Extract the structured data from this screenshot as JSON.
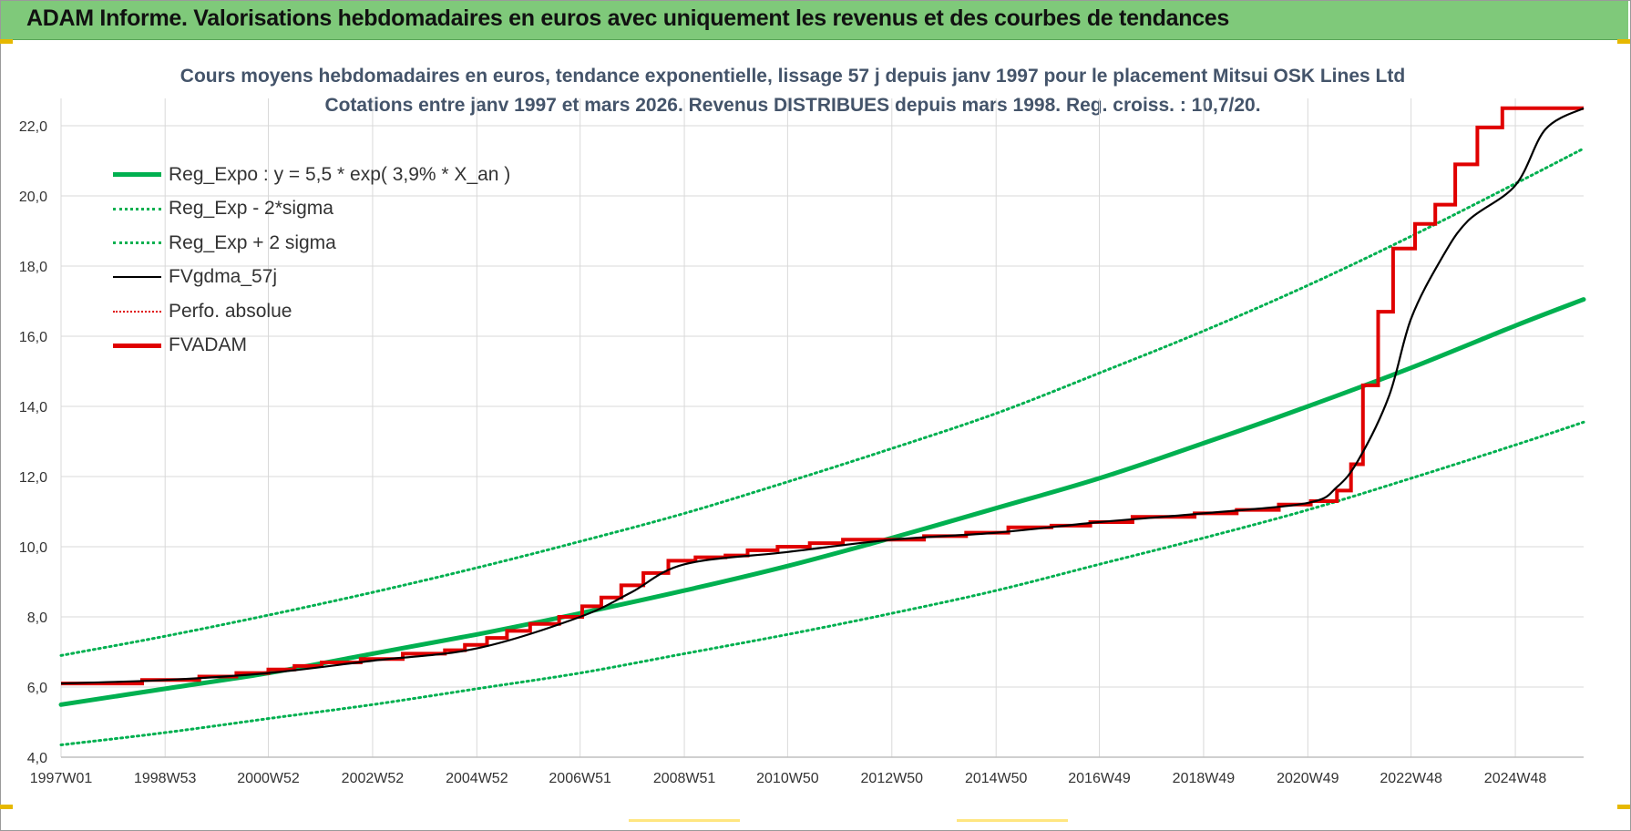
{
  "banner": {
    "title": "ADAM Informe. Valorisations hebdomadaires en euros avec uniquement les revenus et des courbes de tendances"
  },
  "colors": {
    "banner_bg": "#7fc97a",
    "reg_expo": "#00b050",
    "sigma_bands": "#00b050",
    "gdma": "#000000",
    "perfo": "#e00000",
    "fvadam": "#e00000"
  },
  "chart_data": {
    "type": "line",
    "title": "Cours moyens hebdomadaires en euros, tendance exponentielle, lissage 57 j depuis janv 1997 pour le placement Mitsui OSK Lines Ltd",
    "subtitle": "Cotations entre janv 1997 et mars 2026. Revenus DISTRIBUES depuis mars 1998. Reg. croiss. : 10,7/20.",
    "xlabel": "",
    "ylabel": "",
    "x_range": [
      "1997W01",
      "2026W12"
    ],
    "ylim": [
      4.0,
      22.5
    ],
    "x_ticks": [
      "1997W01",
      "1998W53",
      "2000W52",
      "2002W52",
      "2004W52",
      "2006W51",
      "2008W51",
      "2010W50",
      "2012W50",
      "2014W50",
      "2016W49",
      "2018W49",
      "2020W49",
      "2022W48",
      "2024W48"
    ],
    "y_ticks": [
      "4,0",
      "6,0",
      "8,0",
      "10,0",
      "12,0",
      "14,0",
      "16,0",
      "18,0",
      "20,0",
      "22,0"
    ],
    "grid": true,
    "legend_position": "top-left",
    "legend": [
      "Reg_Expo : y = 5,5 * exp( 3,9% *  X_an )",
      "Reg_Exp - 2*sigma",
      "Reg_Exp + 2 sigma",
      "FVgdma_57j",
      "Perfo. absolue",
      "FVADAM"
    ],
    "series": [
      {
        "name": "Reg_Expo : y = 5,5 * exp( 3,9% *  X_an )",
        "style": "solid-thick",
        "x": [
          "1997W01",
          "1998W53",
          "2000W52",
          "2002W52",
          "2004W52",
          "2006W51",
          "2008W51",
          "2010W50",
          "2012W50",
          "2014W50",
          "2016W49",
          "2018W49",
          "2020W49",
          "2022W48",
          "2024W48",
          "2026W12"
        ],
        "values": [
          5.5,
          5.95,
          6.4,
          6.95,
          7.5,
          8.1,
          8.75,
          9.45,
          10.25,
          11.1,
          11.95,
          12.95,
          14.0,
          15.1,
          16.3,
          17.05
        ]
      },
      {
        "name": "Reg_Exp - 2*sigma",
        "style": "dotted",
        "x": [
          "1997W01",
          "1998W53",
          "2000W52",
          "2002W52",
          "2004W52",
          "2006W51",
          "2008W51",
          "2010W50",
          "2012W50",
          "2014W50",
          "2016W49",
          "2018W49",
          "2020W49",
          "2022W48",
          "2024W48",
          "2026W12"
        ],
        "values": [
          4.35,
          4.7,
          5.1,
          5.5,
          5.95,
          6.4,
          6.95,
          7.5,
          8.1,
          8.75,
          9.5,
          10.25,
          11.05,
          11.95,
          12.9,
          13.55
        ]
      },
      {
        "name": "Reg_Exp + 2 sigma",
        "style": "dotted",
        "x": [
          "1997W01",
          "1998W53",
          "2000W52",
          "2002W52",
          "2004W52",
          "2006W51",
          "2008W51",
          "2010W50",
          "2012W50",
          "2014W50",
          "2016W49",
          "2018W49",
          "2020W49",
          "2022W48",
          "2024W48",
          "2026W12"
        ],
        "values": [
          6.9,
          7.45,
          8.05,
          8.7,
          9.4,
          10.15,
          10.95,
          11.85,
          12.8,
          13.8,
          14.95,
          16.15,
          17.45,
          18.85,
          20.35,
          21.35
        ]
      },
      {
        "name": "FVgdma_57j",
        "style": "solid-thin",
        "x": [
          "1997W01",
          "1998W53",
          "2000W52",
          "2002W52",
          "2004W52",
          "2006W51",
          "2007W50",
          "2008W51",
          "2010W50",
          "2012W50",
          "2014W50",
          "2016W49",
          "2018W49",
          "2020W49",
          "2021W26",
          "2021W48",
          "2022W26",
          "2022W48",
          "2023W26",
          "2024W01",
          "2024W48",
          "2025W26",
          "2026W12"
        ],
        "values": [
          6.1,
          6.2,
          6.4,
          6.75,
          7.1,
          8.0,
          8.7,
          9.5,
          9.85,
          10.2,
          10.4,
          10.7,
          10.95,
          11.25,
          11.7,
          12.5,
          14.3,
          16.5,
          18.2,
          19.3,
          20.3,
          21.9,
          22.5
        ]
      },
      {
        "name": "FVADAM",
        "style": "step-thick",
        "x": [
          "1997W01",
          "1998W01",
          "1998W30",
          "1999W01",
          "1999W35",
          "2000W20",
          "2000W52",
          "2001W26",
          "2002W01",
          "2002W40",
          "2003W30",
          "2004W20",
          "2004W40",
          "2005W10",
          "2005W30",
          "2006W01",
          "2006W30",
          "2007W01",
          "2007W20",
          "2007W40",
          "2008W10",
          "2008W35",
          "2009W10",
          "2009W40",
          "2010W10",
          "2010W40",
          "2011W20",
          "2012W01",
          "2012W40",
          "2013W30",
          "2014W20",
          "2015W10",
          "2016W01",
          "2016W40",
          "2017W30",
          "2018W40",
          "2019W30",
          "2020W20",
          "2020W52",
          "2021W26",
          "2021W40",
          "2021W52",
          "2022W15",
          "2022W30",
          "2022W52",
          "2023W20",
          "2023W40",
          "2024W10",
          "2024W35",
          "2025W01",
          "2025W20",
          "2026W12"
        ],
        "values": [
          6.1,
          6.1,
          6.2,
          6.2,
          6.3,
          6.4,
          6.5,
          6.6,
          6.7,
          6.8,
          6.95,
          7.05,
          7.2,
          7.4,
          7.6,
          7.8,
          8.0,
          8.3,
          8.55,
          8.9,
          9.25,
          9.6,
          9.7,
          9.75,
          9.9,
          10.0,
          10.1,
          10.2,
          10.2,
          10.3,
          10.4,
          10.55,
          10.6,
          10.7,
          10.85,
          10.95,
          11.05,
          11.2,
          11.3,
          11.6,
          12.35,
          14.6,
          16.7,
          18.5,
          19.2,
          19.75,
          20.9,
          21.95,
          22.5,
          22.5,
          22.5,
          22.5
        ]
      }
    ]
  }
}
